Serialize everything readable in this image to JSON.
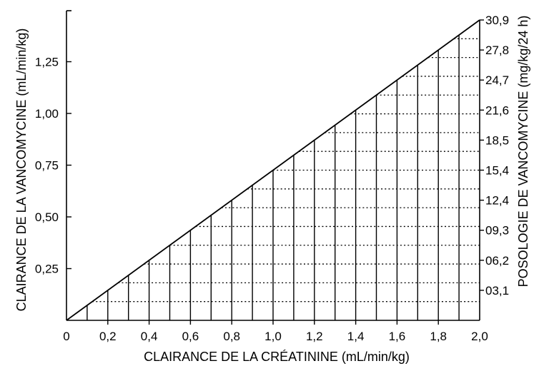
{
  "chart_data": {
    "type": "area",
    "x_axis": {
      "label": "CLAIRANCE DE LA CRÉATININE (mL/min/kg)",
      "min": 0,
      "max": 2.0,
      "tick_values": [
        0,
        0.2,
        0.4,
        0.6,
        0.8,
        1.0,
        1.2,
        1.4,
        1.6,
        1.8,
        2.0
      ],
      "tick_labels": [
        "0",
        "0,2",
        "0,4",
        "0,6",
        "0,8",
        "1,0",
        "1,2",
        "1,4",
        "1,6",
        "1,8",
        "2,0"
      ]
    },
    "y_left": {
      "label": "CLAIRANCE DE LA VANCOMYCINE (mL/min/kg)",
      "min": 0,
      "max": 1.5,
      "tick_values": [
        0.25,
        0.5,
        0.75,
        1.0,
        1.25
      ],
      "tick_labels": [
        "0,25",
        "0,50",
        "0,75",
        "1,00",
        "1,25"
      ]
    },
    "y_right": {
      "label": "POSOLOGIE DE VANCOMYCINE (mg/kg/24 h)",
      "tick_values": [
        3.1,
        6.2,
        9.3,
        12.4,
        15.4,
        18.5,
        21.6,
        24.7,
        27.8,
        30.9
      ],
      "tick_labels": [
        "03,1",
        "06,2",
        "09,3",
        "12,4",
        "15,4",
        "18,5",
        "21,6",
        "24,7",
        "27,8",
        "30,9"
      ]
    },
    "line": {
      "x": [
        0,
        2.0
      ],
      "y": [
        0,
        1.44
      ]
    },
    "vertical_lines_x": [
      0.1,
      0.2,
      0.3,
      0.4,
      0.5,
      0.6,
      0.7,
      0.8,
      0.9,
      1.0,
      1.1,
      1.2,
      1.3,
      1.4,
      1.5,
      1.6,
      1.7,
      1.8,
      1.9
    ],
    "grid": "dotted-under-line"
  }
}
